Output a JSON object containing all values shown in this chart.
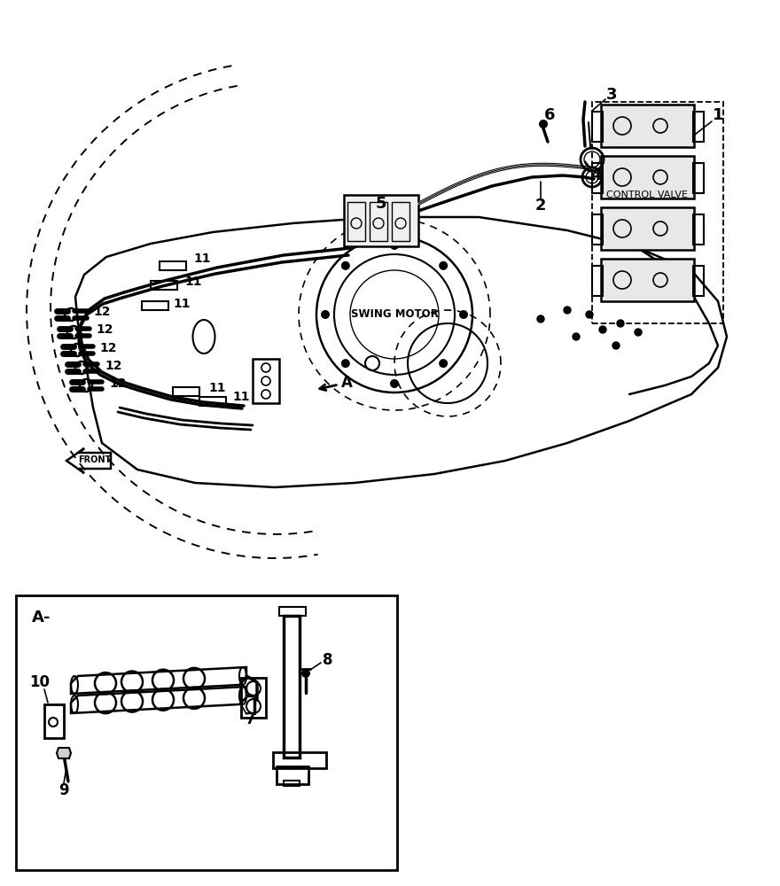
{
  "bg_color": "#ffffff",
  "line_color": "#000000",
  "labels": {
    "control_valve": "CONTROL VALVE",
    "swing_motor": "SWING MOTOR",
    "front": "FRONT",
    "detail_a": "A-"
  }
}
